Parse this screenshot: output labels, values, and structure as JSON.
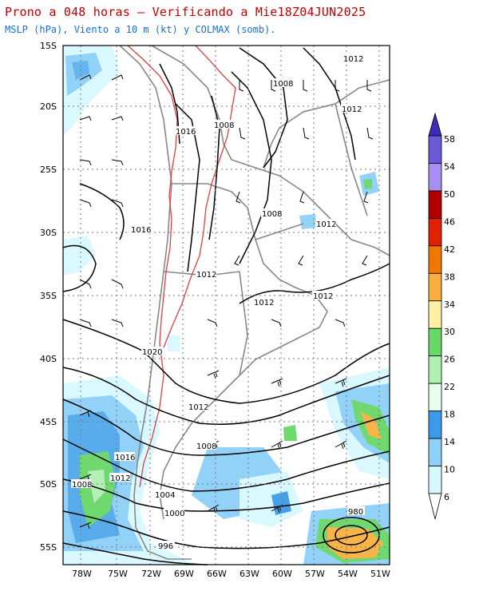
{
  "header": {
    "title": "Prono a 048 horas — Verificando a Mie18Z04JUN2025",
    "subtitle": "MSLP (hPa), Viento a 10 m (kt) y COLMAX (somb)."
  },
  "map": {
    "lat_labels": [
      "15S",
      "20S",
      "25S",
      "30S",
      "35S",
      "40S",
      "45S",
      "50S",
      "55S"
    ],
    "lon_labels": [
      "78W",
      "75W",
      "72W",
      "69W",
      "66W",
      "63W",
      "60W",
      "57W",
      "54W",
      "51W"
    ],
    "isobar_labels": [
      "1012",
      "1008",
      "1012",
      "1016",
      "1008",
      "1008",
      "1012",
      "1016",
      "1012",
      "1012",
      "1012",
      "1020",
      "1012",
      "1008",
      "1016",
      "1012",
      "1008",
      "1004",
      "1000",
      "996",
      "980"
    ]
  },
  "legend": {
    "values": [
      "58",
      "54",
      "50",
      "46",
      "42",
      "38",
      "34",
      "30",
      "26",
      "22",
      "18",
      "14",
      "10",
      "6"
    ],
    "colors": [
      "#3b2bb8",
      "#6a5ad8",
      "#a68ef2",
      "#b00000",
      "#e02000",
      "#f07800",
      "#f8b040",
      "#fff0a8",
      "#68d868",
      "#b0f0b0",
      "#e8fff0",
      "#3c9be8",
      "#8ed0f8",
      "#d8f8ff"
    ]
  },
  "colors": {
    "title": "#c00000",
    "subtitle": "#1a6fd0",
    "border_line": "#888888",
    "terrain_line": "#e04040"
  }
}
